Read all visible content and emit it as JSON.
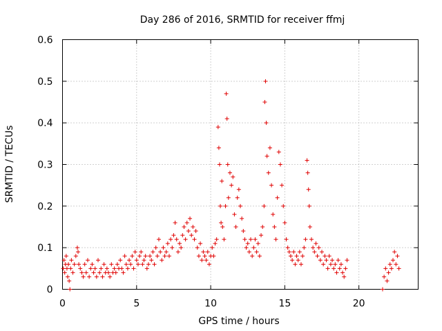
{
  "chart_data": {
    "type": "scatter",
    "title": "Day 286 of 2016, SRMTID for receiver ffmj",
    "xlabel": "GPS time / hours",
    "ylabel": "SRMTID / TECUs",
    "xlim": [
      0,
      24
    ],
    "ylim": [
      0,
      0.6
    ],
    "x_ticks": [
      0,
      5,
      10,
      15,
      20
    ],
    "x_tick_labels": [
      "0",
      "5",
      "10",
      "15",
      "20"
    ],
    "y_ticks": [
      0,
      0.1,
      0.2,
      0.3,
      0.4,
      0.5,
      0.6
    ],
    "y_tick_labels": [
      "0",
      "0.1",
      "0.2",
      "0.3",
      "0.4",
      "0.5",
      "0.6"
    ],
    "grid": true,
    "marker": "plus",
    "series": [
      {
        "name": "SRMTID",
        "color": "#e00000",
        "points": [
          [
            0.05,
            0.05
          ],
          [
            0.1,
            0.07
          ],
          [
            0.15,
            0.04
          ],
          [
            0.2,
            0.06
          ],
          [
            0.25,
            0.08
          ],
          [
            0.3,
            0.05
          ],
          [
            0.35,
            0.03
          ],
          [
            0.4,
            0.06
          ],
          [
            0.45,
            0.02
          ],
          [
            0.5,
            0.0
          ],
          [
            0.55,
            0.05
          ],
          [
            0.6,
            0.07
          ],
          [
            0.7,
            0.04
          ],
          [
            0.8,
            0.06
          ],
          [
            0.9,
            0.08
          ],
          [
            1.0,
            0.1
          ],
          [
            1.05,
            0.09
          ],
          [
            1.1,
            0.06
          ],
          [
            1.2,
            0.05
          ],
          [
            1.3,
            0.04
          ],
          [
            1.4,
            0.03
          ],
          [
            1.5,
            0.06
          ],
          [
            1.6,
            0.04
          ],
          [
            1.7,
            0.07
          ],
          [
            1.8,
            0.03
          ],
          [
            1.9,
            0.05
          ],
          [
            2.0,
            0.06
          ],
          [
            2.1,
            0.04
          ],
          [
            2.2,
            0.05
          ],
          [
            2.3,
            0.03
          ],
          [
            2.4,
            0.07
          ],
          [
            2.5,
            0.04
          ],
          [
            2.6,
            0.05
          ],
          [
            2.7,
            0.03
          ],
          [
            2.8,
            0.06
          ],
          [
            2.9,
            0.04
          ],
          [
            3.0,
            0.05
          ],
          [
            3.1,
            0.04
          ],
          [
            3.2,
            0.03
          ],
          [
            3.3,
            0.06
          ],
          [
            3.4,
            0.04
          ],
          [
            3.5,
            0.05
          ],
          [
            3.6,
            0.04
          ],
          [
            3.7,
            0.06
          ],
          [
            3.8,
            0.05
          ],
          [
            3.9,
            0.07
          ],
          [
            4.0,
            0.05
          ],
          [
            4.1,
            0.04
          ],
          [
            4.2,
            0.08
          ],
          [
            4.3,
            0.06
          ],
          [
            4.4,
            0.05
          ],
          [
            4.5,
            0.07
          ],
          [
            4.6,
            0.06
          ],
          [
            4.7,
            0.08
          ],
          [
            4.8,
            0.05
          ],
          [
            4.9,
            0.09
          ],
          [
            5.0,
            0.07
          ],
          [
            5.1,
            0.06
          ],
          [
            5.2,
            0.08
          ],
          [
            5.3,
            0.09
          ],
          [
            5.4,
            0.06
          ],
          [
            5.5,
            0.07
          ],
          [
            5.6,
            0.08
          ],
          [
            5.7,
            0.05
          ],
          [
            5.8,
            0.06
          ],
          [
            5.9,
            0.08
          ],
          [
            6.0,
            0.07
          ],
          [
            6.1,
            0.09
          ],
          [
            6.2,
            0.06
          ],
          [
            6.3,
            0.1
          ],
          [
            6.4,
            0.08
          ],
          [
            6.5,
            0.12
          ],
          [
            6.6,
            0.09
          ],
          [
            6.7,
            0.07
          ],
          [
            6.8,
            0.1
          ],
          [
            6.9,
            0.08
          ],
          [
            7.0,
            0.09
          ],
          [
            7.1,
            0.11
          ],
          [
            7.2,
            0.08
          ],
          [
            7.3,
            0.12
          ],
          [
            7.4,
            0.1
          ],
          [
            7.5,
            0.13
          ],
          [
            7.6,
            0.16
          ],
          [
            7.7,
            0.12
          ],
          [
            7.8,
            0.09
          ],
          [
            7.9,
            0.11
          ],
          [
            8.0,
            0.1
          ],
          [
            8.1,
            0.13
          ],
          [
            8.2,
            0.15
          ],
          [
            8.3,
            0.12
          ],
          [
            8.4,
            0.16
          ],
          [
            8.5,
            0.14
          ],
          [
            8.6,
            0.17
          ],
          [
            8.7,
            0.13
          ],
          [
            8.8,
            0.15
          ],
          [
            8.9,
            0.12
          ],
          [
            9.0,
            0.14
          ],
          [
            9.1,
            0.1
          ],
          [
            9.2,
            0.08
          ],
          [
            9.3,
            0.11
          ],
          [
            9.4,
            0.07
          ],
          [
            9.5,
            0.09
          ],
          [
            9.6,
            0.08
          ],
          [
            9.7,
            0.07
          ],
          [
            9.8,
            0.09
          ],
          [
            9.9,
            0.06
          ],
          [
            10.0,
            0.08
          ],
          [
            10.1,
            0.1
          ],
          [
            10.2,
            0.08
          ],
          [
            10.3,
            0.11
          ],
          [
            10.4,
            0.12
          ],
          [
            10.5,
            0.39
          ],
          [
            10.55,
            0.34
          ],
          [
            10.6,
            0.3
          ],
          [
            10.65,
            0.2
          ],
          [
            10.7,
            0.16
          ],
          [
            10.75,
            0.26
          ],
          [
            10.8,
            0.15
          ],
          [
            10.9,
            0.12
          ],
          [
            11.0,
            0.2
          ],
          [
            11.05,
            0.47
          ],
          [
            11.1,
            0.41
          ],
          [
            11.15,
            0.3
          ],
          [
            11.2,
            0.22
          ],
          [
            11.3,
            0.28
          ],
          [
            11.4,
            0.25
          ],
          [
            11.5,
            0.27
          ],
          [
            11.6,
            0.18
          ],
          [
            11.7,
            0.15
          ],
          [
            11.8,
            0.22
          ],
          [
            11.9,
            0.24
          ],
          [
            12.0,
            0.2
          ],
          [
            12.1,
            0.17
          ],
          [
            12.2,
            0.14
          ],
          [
            12.3,
            0.12
          ],
          [
            12.4,
            0.1
          ],
          [
            12.5,
            0.11
          ],
          [
            12.6,
            0.09
          ],
          [
            12.7,
            0.12
          ],
          [
            12.8,
            0.08
          ],
          [
            12.9,
            0.1
          ],
          [
            13.0,
            0.12
          ],
          [
            13.1,
            0.09
          ],
          [
            13.2,
            0.11
          ],
          [
            13.3,
            0.08
          ],
          [
            13.4,
            0.13
          ],
          [
            13.5,
            0.15
          ],
          [
            13.6,
            0.2
          ],
          [
            13.65,
            0.45
          ],
          [
            13.7,
            0.5
          ],
          [
            13.75,
            0.4
          ],
          [
            13.8,
            0.32
          ],
          [
            13.9,
            0.28
          ],
          [
            14.0,
            0.34
          ],
          [
            14.1,
            0.25
          ],
          [
            14.2,
            0.18
          ],
          [
            14.3,
            0.15
          ],
          [
            14.4,
            0.12
          ],
          [
            14.5,
            0.22
          ],
          [
            14.6,
            0.33
          ],
          [
            14.7,
            0.3
          ],
          [
            14.8,
            0.25
          ],
          [
            14.9,
            0.2
          ],
          [
            15.0,
            0.16
          ],
          [
            15.1,
            0.12
          ],
          [
            15.2,
            0.1
          ],
          [
            15.3,
            0.09
          ],
          [
            15.4,
            0.08
          ],
          [
            15.5,
            0.07
          ],
          [
            15.6,
            0.09
          ],
          [
            15.7,
            0.06
          ],
          [
            15.8,
            0.08
          ],
          [
            15.9,
            0.07
          ],
          [
            16.0,
            0.09
          ],
          [
            16.1,
            0.06
          ],
          [
            16.2,
            0.08
          ],
          [
            16.3,
            0.1
          ],
          [
            16.4,
            0.12
          ],
          [
            16.5,
            0.31
          ],
          [
            16.55,
            0.28
          ],
          [
            16.6,
            0.24
          ],
          [
            16.65,
            0.2
          ],
          [
            16.7,
            0.15
          ],
          [
            16.8,
            0.12
          ],
          [
            16.9,
            0.1
          ],
          [
            17.0,
            0.09
          ],
          [
            17.1,
            0.11
          ],
          [
            17.2,
            0.08
          ],
          [
            17.3,
            0.1
          ],
          [
            17.4,
            0.07
          ],
          [
            17.5,
            0.09
          ],
          [
            17.6,
            0.06
          ],
          [
            17.7,
            0.08
          ],
          [
            17.8,
            0.07
          ],
          [
            17.9,
            0.05
          ],
          [
            18.0,
            0.08
          ],
          [
            18.1,
            0.06
          ],
          [
            18.2,
            0.07
          ],
          [
            18.3,
            0.05
          ],
          [
            18.4,
            0.06
          ],
          [
            18.5,
            0.04
          ],
          [
            18.6,
            0.07
          ],
          [
            18.7,
            0.05
          ],
          [
            18.8,
            0.06
          ],
          [
            18.9,
            0.04
          ],
          [
            19.0,
            0.03
          ],
          [
            19.1,
            0.05
          ],
          [
            19.2,
            0.07
          ],
          [
            21.6,
            0.0
          ],
          [
            21.7,
            0.03
          ],
          [
            21.8,
            0.05
          ],
          [
            21.9,
            0.02
          ],
          [
            22.0,
            0.04
          ],
          [
            22.1,
            0.06
          ],
          [
            22.2,
            0.05
          ],
          [
            22.3,
            0.07
          ],
          [
            22.4,
            0.09
          ],
          [
            22.5,
            0.06
          ],
          [
            22.6,
            0.08
          ],
          [
            22.7,
            0.05
          ]
        ]
      }
    ]
  }
}
